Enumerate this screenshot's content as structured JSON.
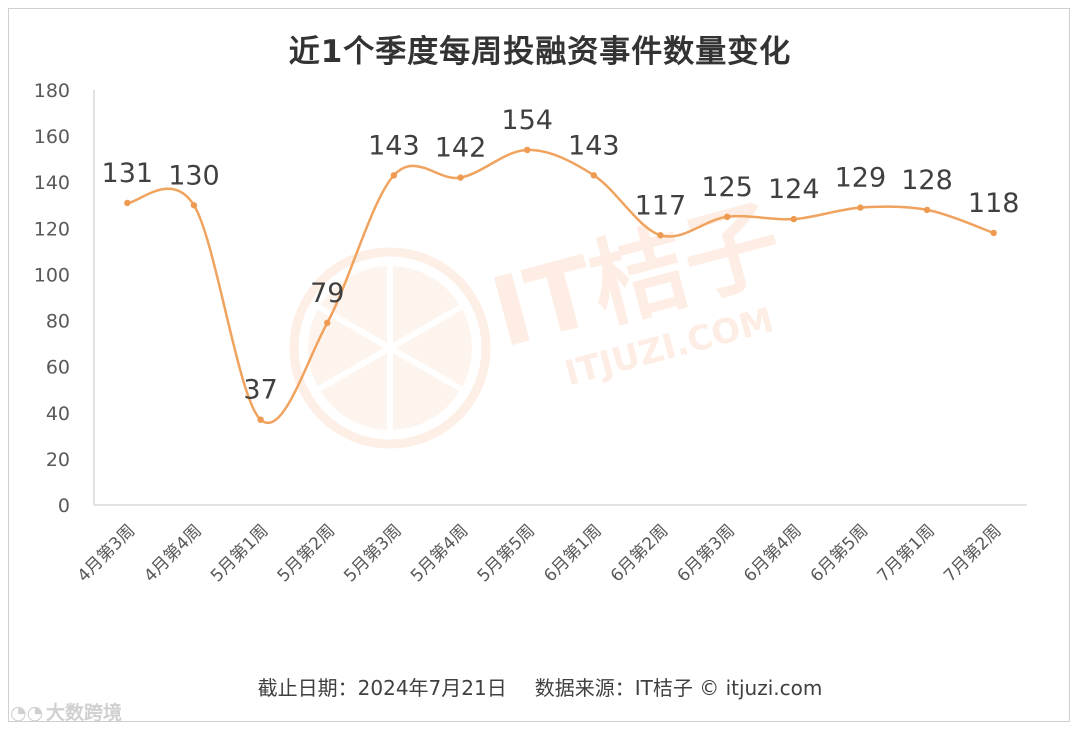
{
  "title": "近1个季度每周投融资事件数量变化",
  "footer": {
    "date_text": "截止日期：2024年7月21日",
    "source_text": "数据来源：IT桔子 © itjuzi.com"
  },
  "watermark": {
    "brand_cn": "IT桔子",
    "brand_url": "ITJUZI.COM",
    "corner_brand": "大数跨境"
  },
  "colors": {
    "line": "#F0A35E",
    "marker": "#EE9A50",
    "axis": "#d9d9d9",
    "watermark": "#FBE3D6"
  },
  "chart_data": {
    "type": "line",
    "categories": [
      "4月第3周",
      "4月第4周",
      "5月第1周",
      "5月第2周",
      "5月第3周",
      "5月第4周",
      "5月第5周",
      "6月第1周",
      "6月第2周",
      "6月第3周",
      "6月第4周",
      "6月第5周",
      "7月第1周",
      "7月第2周"
    ],
    "values": [
      131,
      130,
      37,
      79,
      143,
      142,
      154,
      143,
      117,
      125,
      124,
      129,
      128,
      118
    ],
    "ylim": [
      0,
      180
    ],
    "yticks": [
      0,
      20,
      40,
      60,
      80,
      100,
      120,
      140,
      160,
      180
    ],
    "smooth": true,
    "data_labels": true,
    "grid": false,
    "legend": "none"
  }
}
